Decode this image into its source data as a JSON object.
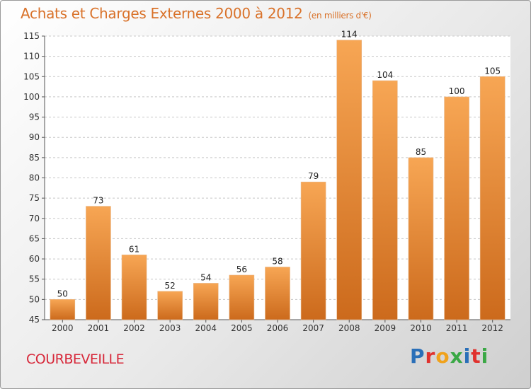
{
  "header": {
    "title": "Achats et Charges Externes 2000 à 2012",
    "subtitle": "(en milliers d'€)"
  },
  "footer": {
    "city": "COURBEVEILLE",
    "logo": "Proxiti"
  },
  "colors": {
    "bar_light": "#f7a654",
    "bar_dark": "#cc6a1c",
    "title": "#d9722a",
    "city": "#d7283a",
    "grid": "#c8c8c8"
  },
  "chart_data": {
    "type": "bar",
    "title": "Achats et Charges Externes 2000 à 2012",
    "subtitle": "(en milliers d'€)",
    "xlabel": "",
    "ylabel": "",
    "categories": [
      "2000",
      "2001",
      "2002",
      "2003",
      "2004",
      "2005",
      "2006",
      "2007",
      "2008",
      "2009",
      "2010",
      "2011",
      "2012"
    ],
    "values": [
      50,
      73,
      61,
      52,
      54,
      56,
      58,
      79,
      114,
      104,
      85,
      100,
      105
    ],
    "ylim": [
      45,
      115
    ],
    "yticks": [
      45,
      50,
      55,
      60,
      65,
      70,
      75,
      80,
      85,
      90,
      95,
      100,
      105,
      110,
      115
    ],
    "grid": true,
    "legend": "none"
  }
}
